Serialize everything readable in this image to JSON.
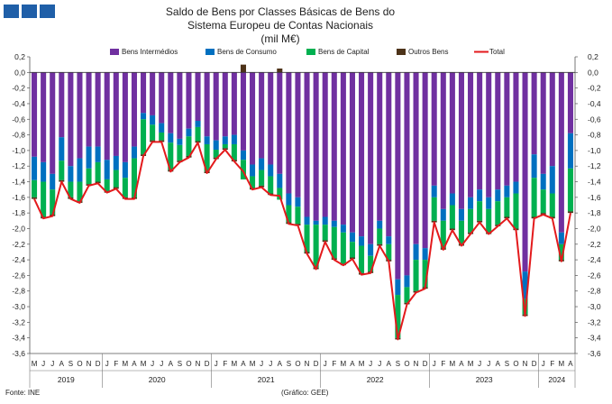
{
  "header": {
    "logo_color": "#1f5fa8",
    "logo_blocks": 3
  },
  "chart_data": {
    "type": "bar",
    "stacked": true,
    "title_lines": [
      "Saldo de Bens por Classes Básicas de Bens do",
      "Sistema Europeu de Contas Nacionais",
      "(mil M€)"
    ],
    "ylim": [
      -3.6,
      0.2
    ],
    "ytick_step": 0.2,
    "ytick_labels": [
      "0,2",
      "0,0",
      "-0,2",
      "-0,4",
      "-0,6",
      "-0,8",
      "-1,0",
      "-1,2",
      "-1,4",
      "-1,6",
      "-1,8",
      "-2,0",
      "-2,2",
      "-2,4",
      "-2,6",
      "-2,8",
      "-3,0",
      "-3,2",
      "-3,4",
      "-3,6"
    ],
    "gridlines": false,
    "legend_position": "top",
    "categories": [
      "M",
      "J",
      "J",
      "A",
      "S",
      "O",
      "N",
      "D",
      "J",
      "F",
      "M",
      "A",
      "M",
      "J",
      "J",
      "A",
      "S",
      "O",
      "N",
      "D",
      "J",
      "F",
      "M",
      "A",
      "M",
      "J",
      "J",
      "A",
      "S",
      "O",
      "N",
      "D",
      "J",
      "F",
      "M",
      "A",
      "M",
      "J",
      "J",
      "A",
      "S",
      "O",
      "N",
      "D",
      "J",
      "F",
      "M",
      "A",
      "M",
      "J",
      "J",
      "A",
      "S",
      "O",
      "N",
      "D",
      "J",
      "F",
      "M",
      "A"
    ],
    "years": [
      {
        "label": "2019",
        "start": 0,
        "end": 7
      },
      {
        "label": "2020",
        "start": 8,
        "end": 19
      },
      {
        "label": "2021",
        "start": 20,
        "end": 31
      },
      {
        "label": "2022",
        "start": 32,
        "end": 43
      },
      {
        "label": "2023",
        "start": 44,
        "end": 55
      },
      {
        "label": "2024",
        "start": 56,
        "end": 59
      }
    ],
    "series": [
      {
        "name": "Bens Intermédios",
        "color": "#7030a0",
        "kind": "bar",
        "values": [
          -1.08,
          -1.15,
          -1.3,
          -0.83,
          -1.2,
          -1.1,
          -0.95,
          -0.95,
          -1.12,
          -1.07,
          -1.15,
          -0.95,
          -0.52,
          -0.55,
          -0.65,
          -0.78,
          -0.85,
          -0.72,
          -0.62,
          -0.82,
          -0.87,
          -0.82,
          -0.8,
          -1.0,
          -1.18,
          -1.1,
          -1.18,
          -1.3,
          -1.55,
          -1.6,
          -1.85,
          -1.9,
          -1.85,
          -1.9,
          -1.95,
          -2.05,
          -2.1,
          -2.2,
          -1.9,
          -2.1,
          -2.65,
          -2.6,
          -2.2,
          -2.25,
          -1.45,
          -1.75,
          -1.55,
          -1.75,
          -1.6,
          -1.5,
          -1.6,
          -1.5,
          -1.45,
          -1.4,
          -2.55,
          -1.05,
          -1.3,
          -1.2,
          -2.05,
          -0.78
        ]
      },
      {
        "name": "Bens de Consumo",
        "color": "#0070c0",
        "kind": "bar",
        "values": [
          -0.3,
          -0.25,
          -0.2,
          -0.3,
          -0.2,
          -0.3,
          -0.28,
          -0.2,
          -0.25,
          -0.18,
          -0.2,
          -0.15,
          -0.08,
          -0.12,
          -0.12,
          -0.12,
          -0.08,
          -0.1,
          -0.08,
          -0.1,
          -0.12,
          -0.1,
          -0.12,
          -0.12,
          -0.15,
          -0.15,
          -0.15,
          -0.18,
          -0.15,
          -0.12,
          -0.1,
          -0.05,
          -0.1,
          -0.08,
          -0.1,
          -0.12,
          -0.12,
          -0.15,
          -0.1,
          -0.1,
          -0.2,
          -0.15,
          -0.2,
          -0.15,
          -0.15,
          -0.15,
          -0.15,
          -0.15,
          -0.15,
          -0.15,
          -0.15,
          -0.15,
          -0.15,
          -0.15,
          -0.35,
          -0.3,
          -0.2,
          -0.35,
          -0.15,
          -0.45
        ]
      },
      {
        "name": "Bens de Capital",
        "color": "#00b050",
        "kind": "bar",
        "values": [
          -0.22,
          -0.45,
          -0.32,
          -0.25,
          -0.2,
          -0.25,
          -0.2,
          -0.25,
          -0.15,
          -0.22,
          -0.25,
          -0.5,
          -0.45,
          -0.2,
          -0.1,
          -0.35,
          -0.2,
          -0.25,
          -0.18,
          -0.35,
          -0.1,
          -0.05,
          -0.2,
          -0.25,
          -0.15,
          -0.2,
          -0.22,
          -0.15,
          -0.22,
          -0.22,
          -0.35,
          -0.55,
          -0.2,
          -0.4,
          -0.4,
          -0.2,
          -0.35,
          -0.2,
          -0.2,
          -0.2,
          -0.55,
          -0.2,
          -0.4,
          -0.35,
          -0.3,
          -0.35,
          -0.3,
          -0.3,
          -0.3,
          -0.25,
          -0.3,
          -0.3,
          -0.25,
          -0.45,
          -0.2,
          -0.5,
          -0.3,
          -0.3,
          -0.2,
          -0.55
        ]
      },
      {
        "name": "Outros Bens",
        "color": "#4d3319",
        "kind": "bar",
        "values": [
          -0.02,
          -0.02,
          -0.02,
          -0.02,
          -0.02,
          -0.02,
          -0.02,
          -0.02,
          -0.02,
          -0.02,
          -0.02,
          -0.02,
          -0.02,
          -0.02,
          -0.02,
          -0.02,
          -0.02,
          -0.02,
          -0.02,
          -0.02,
          -0.02,
          -0.02,
          -0.02,
          0.1,
          -0.02,
          -0.02,
          -0.02,
          0.05,
          -0.02,
          -0.02,
          -0.02,
          -0.02,
          -0.02,
          -0.02,
          -0.02,
          -0.02,
          -0.02,
          -0.02,
          -0.02,
          -0.02,
          -0.02,
          -0.02,
          -0.02,
          -0.02,
          -0.02,
          -0.02,
          -0.02,
          -0.02,
          -0.02,
          -0.02,
          -0.02,
          -0.02,
          -0.02,
          -0.02,
          -0.02,
          -0.02,
          -0.02,
          -0.02,
          -0.02,
          -0.02
        ]
      },
      {
        "name": "Total",
        "color": "#e31a1c",
        "kind": "line",
        "values": [
          -1.62,
          -1.87,
          -1.84,
          -1.4,
          -1.62,
          -1.67,
          -1.45,
          -1.42,
          -1.54,
          -1.49,
          -1.62,
          -1.62,
          -1.07,
          -0.89,
          -0.89,
          -1.27,
          -1.15,
          -1.09,
          -0.9,
          -1.29,
          -1.11,
          -0.99,
          -1.14,
          -1.27,
          -1.5,
          -1.47,
          -1.57,
          -1.58,
          -1.94,
          -1.96,
          -2.32,
          -2.52,
          -2.17,
          -2.4,
          -2.47,
          -2.39,
          -2.59,
          -2.57,
          -2.22,
          -2.42,
          -3.42,
          -2.97,
          -2.82,
          -2.77,
          -1.92,
          -2.27,
          -2.02,
          -2.22,
          -2.07,
          -1.92,
          -2.07,
          -1.97,
          -1.87,
          -2.02,
          -3.12,
          -1.87,
          -1.82,
          -1.87,
          -2.42,
          -1.8
        ]
      }
    ],
    "legend": [
      "Bens Intermédios",
      "Bens de Consumo",
      "Bens de Capital",
      "Outros Bens",
      "Total"
    ]
  },
  "footer": {
    "source": "Fonte: INE",
    "credit": "(Gráfico: GEE)"
  }
}
